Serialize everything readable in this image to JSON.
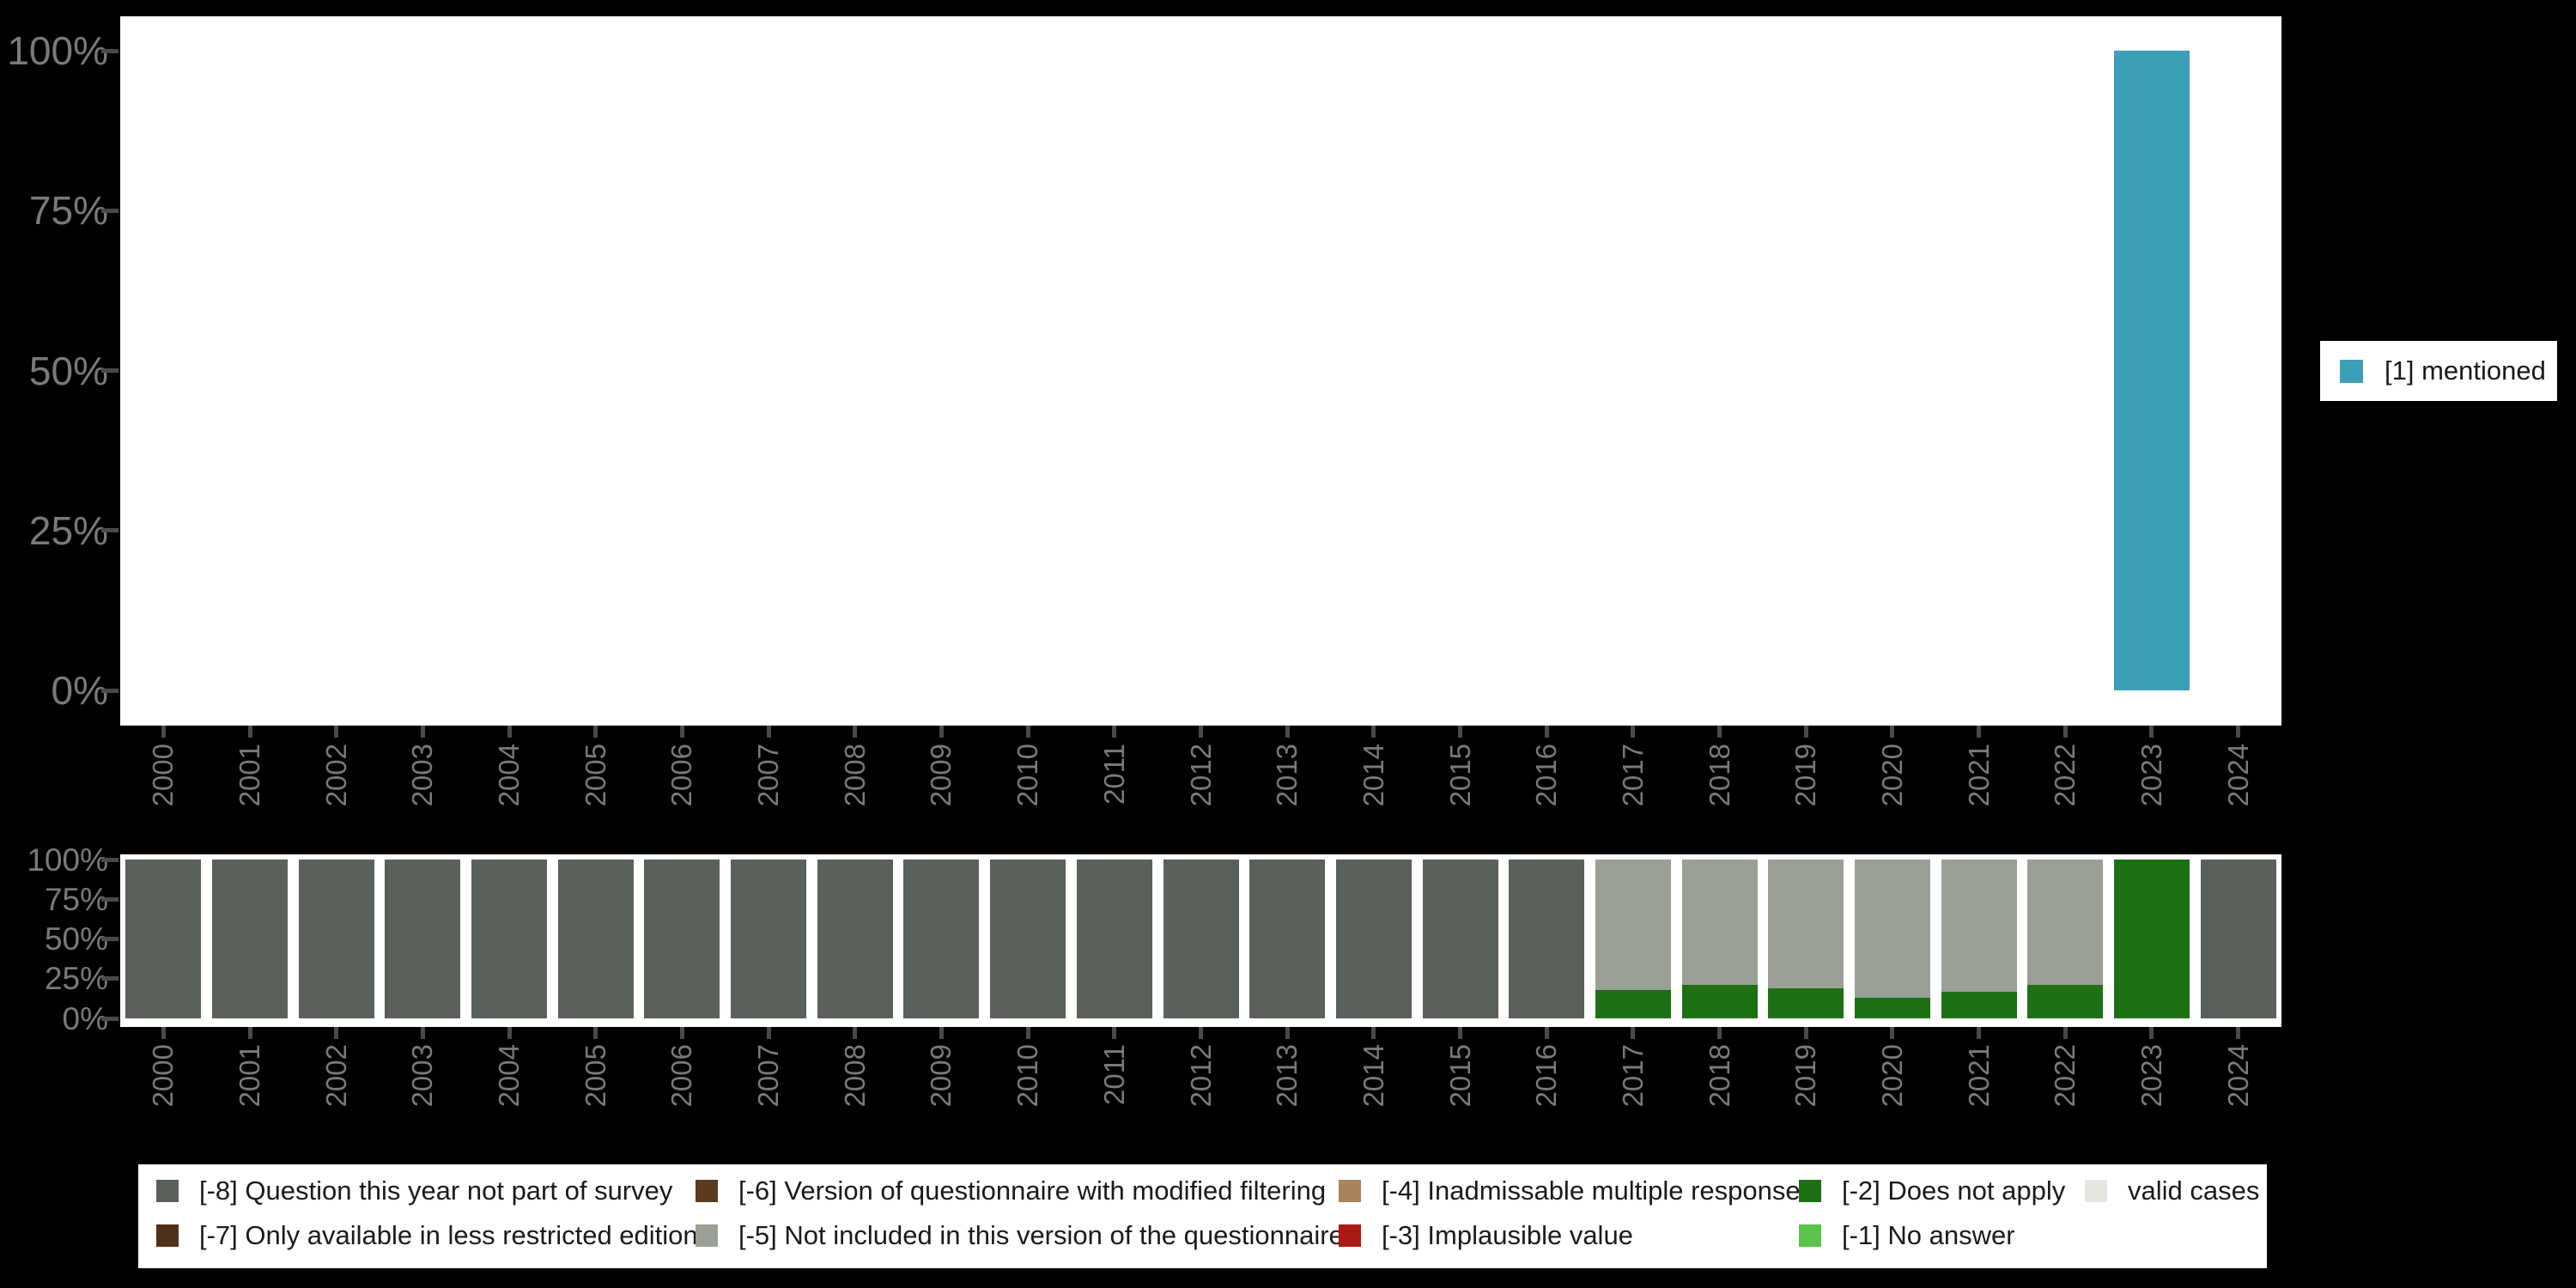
{
  "colors": {
    "background": "#000000",
    "panel": "#ffffff",
    "axis_label": "#7a7a7a",
    "tick": "#4a4a4a",
    "legend_text": "#1a1a1a"
  },
  "chart_data": [
    {
      "id": "mentioned-by-year",
      "type": "bar",
      "title": "",
      "xlabel": "",
      "ylabel": "",
      "ylim": [
        0,
        100
      ],
      "yticks": [
        "0%",
        "25%",
        "50%",
        "75%",
        "100%"
      ],
      "grid": false,
      "categories": [
        "2000",
        "2001",
        "2002",
        "2003",
        "2004",
        "2005",
        "2006",
        "2007",
        "2008",
        "2009",
        "2010",
        "2011",
        "2012",
        "2013",
        "2014",
        "2015",
        "2016",
        "2017",
        "2018",
        "2019",
        "2020",
        "2021",
        "2022",
        "2023",
        "2024"
      ],
      "series": [
        {
          "name": "[1] mentioned",
          "color": "#3B9FB5",
          "values": [
            0,
            0,
            0,
            0,
            0,
            0,
            0,
            0,
            0,
            0,
            0,
            0,
            0,
            0,
            0,
            0,
            0,
            0,
            0,
            0,
            0,
            0,
            0,
            100,
            0
          ]
        }
      ],
      "legend": {
        "position": "right",
        "entries": [
          {
            "label": "[1] mentioned",
            "color": "#3B9FB5"
          }
        ]
      }
    },
    {
      "id": "missing-values-by-year",
      "type": "bar",
      "stacked": true,
      "title": "",
      "xlabel": "",
      "ylabel": "",
      "ylim": [
        0,
        100
      ],
      "yticks": [
        "0%",
        "25%",
        "50%",
        "75%",
        "100%"
      ],
      "grid": false,
      "categories": [
        "2000",
        "2001",
        "2002",
        "2003",
        "2004",
        "2005",
        "2006",
        "2007",
        "2008",
        "2009",
        "2010",
        "2011",
        "2012",
        "2013",
        "2014",
        "2015",
        "2016",
        "2017",
        "2018",
        "2019",
        "2020",
        "2021",
        "2022",
        "2023",
        "2024"
      ],
      "series": [
        {
          "name": "[-8] Question this year not part of survey",
          "color": "#59615A",
          "values": [
            100,
            100,
            100,
            100,
            100,
            100,
            100,
            100,
            100,
            100,
            100,
            100,
            100,
            100,
            100,
            100,
            100,
            0,
            0,
            0,
            0,
            0,
            0,
            0,
            100
          ]
        },
        {
          "name": "[-2] Does not apply",
          "color": "#1E7014",
          "values": [
            0,
            0,
            0,
            0,
            0,
            0,
            0,
            0,
            0,
            0,
            0,
            0,
            0,
            0,
            0,
            0,
            0,
            18,
            21,
            19,
            13,
            17,
            21,
            100,
            0
          ]
        },
        {
          "name": "[-5] Not included in this version of the questionnaire",
          "color": "#9AA096",
          "values": [
            0,
            0,
            0,
            0,
            0,
            0,
            0,
            0,
            0,
            0,
            0,
            0,
            0,
            0,
            0,
            0,
            0,
            82,
            79,
            81,
            87,
            83,
            79,
            0,
            0
          ]
        }
      ],
      "legend": {
        "position": "bottom",
        "entries": [
          {
            "label": "[-8] Question this year not part of survey",
            "color": "#59615A"
          },
          {
            "label": "[-7] Only available in less restricted edition",
            "color": "#4F3018"
          },
          {
            "label": "[-6] Version of questionnaire with modified filtering",
            "color": "#5C3A1E"
          },
          {
            "label": "[-5] Not included in this version of the questionnaire",
            "color": "#9AA096"
          },
          {
            "label": "[-4] Inadmissable multiple response",
            "color": "#A8845C"
          },
          {
            "label": "[-3] Implausible value",
            "color": "#AA1912"
          },
          {
            "label": "[-2] Does not apply",
            "color": "#1E7014"
          },
          {
            "label": "[-1] No answer",
            "color": "#5BC24A"
          },
          {
            "label": "valid cases",
            "color": "#E3E7E0"
          }
        ]
      }
    }
  ]
}
